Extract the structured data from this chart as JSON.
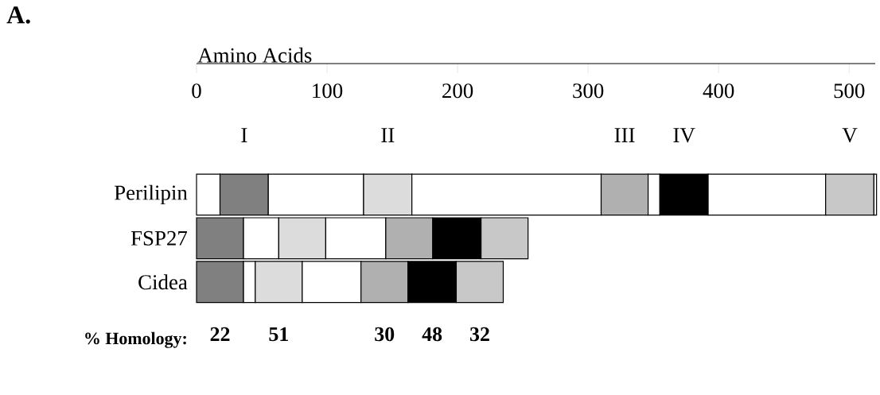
{
  "chart_data": {
    "type": "bar",
    "orientation": "horizontal",
    "stacked": true,
    "title": "A.",
    "xlabel": "Amino Acids",
    "categories": [
      "Perilipin",
      "FSP27",
      "Cidea"
    ],
    "series": [
      {
        "color": "#ffffff",
        "values": [
          18,
          null,
          null
        ]
      },
      {
        "name": "I",
        "color": "#808080",
        "values": [
          37,
          36,
          36
        ]
      },
      {
        "color": "#ffffff",
        "values": [
          73,
          27,
          9
        ]
      },
      {
        "name": "II",
        "color": "#dcdcdc",
        "values": [
          37,
          36,
          36
        ]
      },
      {
        "color": "#ffffff",
        "values": [
          145,
          46,
          45
        ]
      },
      {
        "name": "III",
        "color": "#b0b0b0",
        "values": [
          36,
          36,
          36
        ]
      },
      {
        "color": "#ffffff",
        "values": [
          9,
          null,
          null
        ]
      },
      {
        "name": "IV",
        "color": "#000000",
        "values": [
          37,
          37,
          37
        ]
      },
      {
        "color": "#ffffff",
        "values": [
          90,
          null,
          null
        ]
      },
      {
        "name": "V",
        "color": "#c8c8c8",
        "values": [
          37,
          36,
          36
        ]
      },
      {
        "color": "#ffffff",
        "values": [
          2,
          null,
          null
        ]
      }
    ],
    "xlim": [
      0,
      520
    ],
    "xticks": [
      0,
      100,
      200,
      300,
      400,
      500
    ],
    "grid": false,
    "annotations": [
      "% Homology:",
      "22",
      "51",
      "30",
      "48",
      "32"
    ]
  }
}
